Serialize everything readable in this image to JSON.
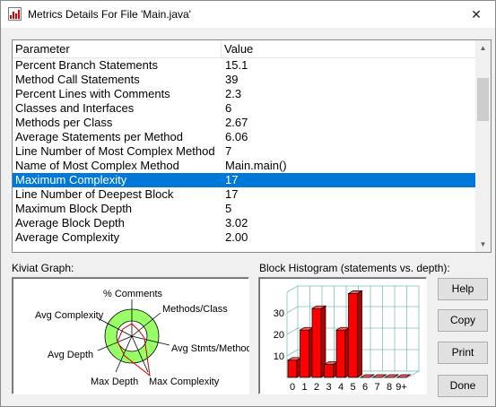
{
  "window": {
    "title": "Metrics Details For File 'Main.java'",
    "close_symbol": "✕"
  },
  "table": {
    "headers": {
      "parameter": "Parameter",
      "value": "Value"
    },
    "rows": [
      {
        "parameter": "Percent Branch Statements",
        "value": "15.1",
        "selected": false
      },
      {
        "parameter": "Method Call Statements",
        "value": "39",
        "selected": false
      },
      {
        "parameter": "Percent Lines with Comments",
        "value": "2.3",
        "selected": false
      },
      {
        "parameter": "Classes and Interfaces",
        "value": "6",
        "selected": false
      },
      {
        "parameter": "Methods per Class",
        "value": "2.67",
        "selected": false
      },
      {
        "parameter": "Average Statements per Method",
        "value": "6.06",
        "selected": false
      },
      {
        "parameter": "Line Number of Most Complex Method",
        "value": "7",
        "selected": false
      },
      {
        "parameter": "Name of Most Complex Method",
        "value": "Main.main()",
        "selected": false
      },
      {
        "parameter": "Maximum Complexity",
        "value": "17",
        "selected": true
      },
      {
        "parameter": "Line Number of Deepest Block",
        "value": "17",
        "selected": false
      },
      {
        "parameter": "Maximum Block Depth",
        "value": "5",
        "selected": false
      },
      {
        "parameter": "Average Block Depth",
        "value": "3.02",
        "selected": false
      },
      {
        "parameter": "Average Complexity",
        "value": "2.00",
        "selected": false
      }
    ]
  },
  "kiviat": {
    "label": "Kiviat Graph:",
    "axes": {
      "comments": "% Comments",
      "methods_class": "Methods/Class",
      "avg_stmts": "Avg Stmts/Method",
      "max_complexity": "Max Complexity",
      "max_depth": "Max Depth",
      "avg_depth": "Avg Depth",
      "avg_complexity": "Avg Complexity"
    }
  },
  "histogram": {
    "label": "Block Histogram (statements vs. depth):",
    "categories": [
      "0",
      "1",
      "2",
      "3",
      "4",
      "5",
      "6",
      "7",
      "8",
      "9+"
    ],
    "values": [
      8,
      22,
      32,
      6,
      22,
      39,
      0,
      0,
      0,
      0
    ],
    "y_ticks": [
      "30",
      "20",
      "10"
    ],
    "ylim": [
      0,
      40
    ],
    "bar_color": "#ff0000"
  },
  "buttons": {
    "help": "Help",
    "copy": "Copy",
    "print": "Print",
    "done": "Done"
  }
}
